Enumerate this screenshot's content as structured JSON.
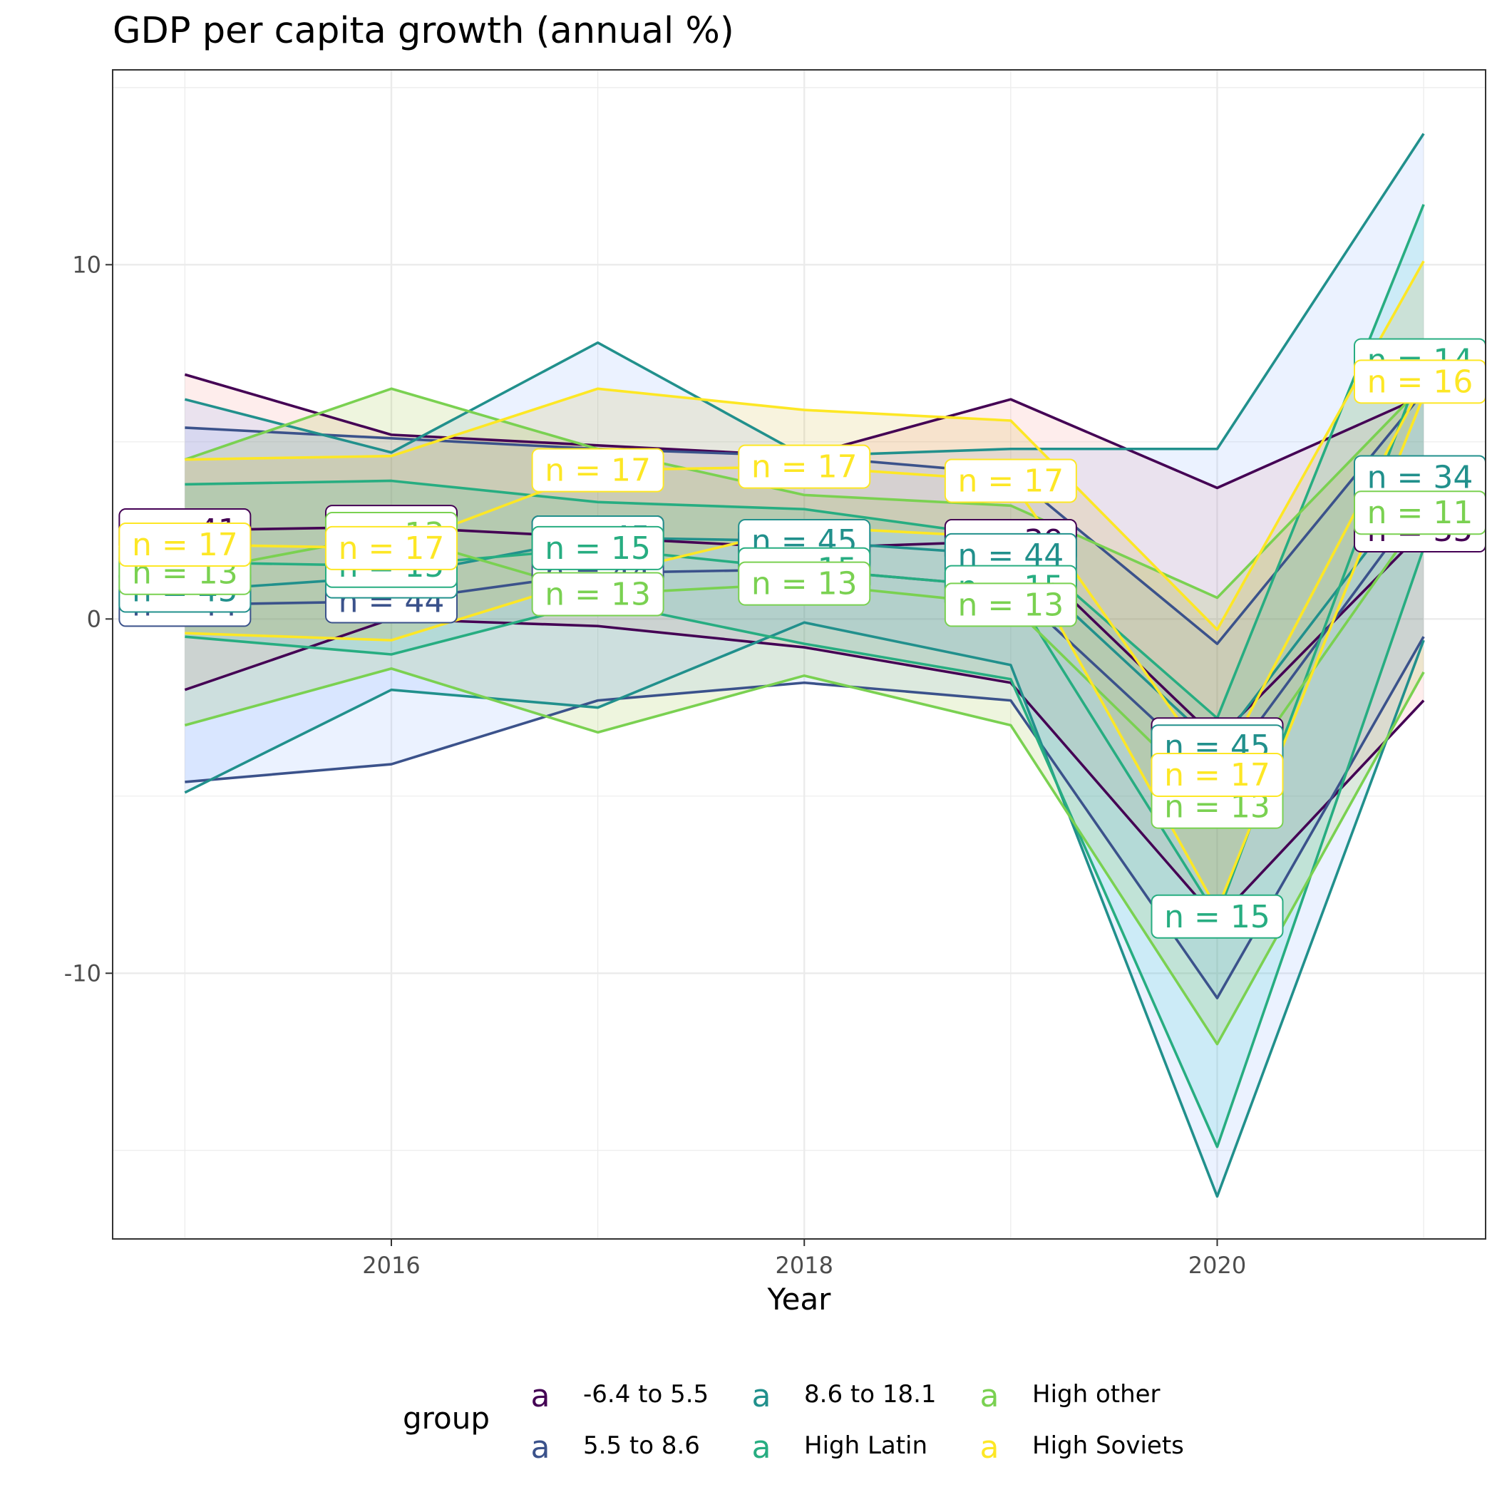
{
  "chart_data": {
    "type": "line",
    "title": "GDP per capita growth (annual %)",
    "xlabel": "Year",
    "ylabel": "",
    "xlim": [
      2014.65,
      2021.3
    ],
    "ylim": [
      -17.5,
      15.5
    ],
    "x_ticks": [
      2016,
      2018,
      2020
    ],
    "y_ticks": [
      10,
      0,
      -10
    ],
    "y_tick_labels": [
      "10",
      "0",
      "-10"
    ],
    "grid": true,
    "bands_shaded": true,
    "legend": {
      "title": "group",
      "placement": "bottom",
      "key_glyph": "a",
      "entries": [
        "-6.4 to 5.5",
        "5.5 to 8.6",
        "8.6 to 18.1",
        "High Latin",
        "High other",
        "High Soviets"
      ]
    },
    "x": [
      2015,
      2016,
      2017,
      2018,
      2019,
      2020,
      2021
    ],
    "series": [
      {
        "name": "-6.4 to 5.5",
        "color": "#440154",
        "fill": "#f8766d",
        "upper": [
          6.9,
          5.2,
          4.9,
          4.6,
          6.2,
          3.7,
          6.3
        ],
        "median": [
          2.5,
          2.6,
          2.3,
          2.0,
          2.2,
          -3.4,
          2.5
        ],
        "lower": [
          -2.0,
          0.0,
          -0.2,
          -0.8,
          -1.8,
          -8.5,
          -2.3
        ],
        "n": [
          41,
          44,
          45,
          45,
          39,
          38,
          35
        ],
        "n_labels": [
          "n = 41",
          "n = 44",
          "n = 45",
          "n = 45",
          "n = 39",
          "n = 38",
          "n = 35"
        ]
      },
      {
        "name": "5.5 to 8.6",
        "color": "#3b528b",
        "fill": "#619cff",
        "upper": [
          5.4,
          5.1,
          4.8,
          4.6,
          4.1,
          -0.7,
          6.4
        ],
        "median": [
          0.4,
          0.5,
          1.3,
          1.4,
          0.9,
          -4.5,
          3.4
        ],
        "lower": [
          -4.6,
          -4.1,
          -2.3,
          -1.8,
          -2.3,
          -10.7,
          -0.5
        ],
        "n": [
          44,
          44,
          44,
          44,
          44,
          44,
          34
        ],
        "n_labels": [
          "n = 44",
          "n = 44",
          "n = 44",
          "n = 44",
          "n = 44",
          "n = 44",
          "n = 34"
        ]
      },
      {
        "name": "8.6 to 18.1",
        "color": "#21908c",
        "fill": "#619cff",
        "upper": [
          6.2,
          4.7,
          7.8,
          4.6,
          4.8,
          4.8,
          13.7
        ],
        "median": [
          0.8,
          1.2,
          2.3,
          2.2,
          1.8,
          -3.6,
          4.0
        ],
        "lower": [
          -4.9,
          -2.0,
          -2.5,
          -0.1,
          -1.3,
          -16.3,
          -0.6
        ],
        "n": [
          45,
          45,
          45,
          45,
          44,
          45,
          34
        ],
        "n_labels": [
          "n = 45",
          "n = 45",
          "n = 45",
          "n = 45",
          "n = 44",
          "n = 45",
          "n = 34"
        ]
      },
      {
        "name": "High Latin",
        "color": "#27ad81",
        "fill": "#00bfc4",
        "upper": [
          3.8,
          3.9,
          3.3,
          3.1,
          2.3,
          -2.8,
          11.7
        ],
        "median": [
          1.6,
          1.5,
          2.0,
          1.4,
          0.9,
          -8.4,
          7.3
        ],
        "lower": [
          -0.5,
          -1.0,
          0.5,
          -0.7,
          -1.7,
          -14.9,
          2.0
        ],
        "n": [
          15,
          15,
          15,
          15,
          15,
          15,
          14
        ],
        "n_labels": [
          "n = 15",
          "n = 15",
          "n = 15",
          "n = 15",
          "n = 15",
          "n = 15",
          "n = 14"
        ]
      },
      {
        "name": "High other",
        "color": "#7ad151",
        "fill": "#7cae00",
        "upper": [
          4.5,
          6.5,
          4.8,
          3.5,
          3.2,
          0.6,
          6.6
        ],
        "median": [
          1.3,
          2.4,
          0.7,
          1.0,
          0.4,
          -5.3,
          3.0
        ],
        "lower": [
          -3.0,
          -1.4,
          -3.2,
          -1.6,
          -3.0,
          -12.0,
          -1.5
        ],
        "n": [
          13,
          13,
          13,
          13,
          13,
          13,
          11
        ],
        "n_labels": [
          "n = 13",
          "n = 13",
          "n = 13",
          "n = 13",
          "n = 13",
          "n = 13",
          "n = 11"
        ]
      },
      {
        "name": "High Soviets",
        "color": "#fde725",
        "fill": "#c7a400",
        "upper": [
          4.5,
          4.6,
          6.5,
          5.9,
          5.6,
          -0.3,
          10.1
        ],
        "median": [
          2.1,
          2.0,
          4.2,
          4.3,
          3.9,
          -4.4,
          6.7
        ],
        "lower": [
          -0.4,
          -0.6,
          1.2,
          2.6,
          2.3,
          -8.2,
          6.3
        ],
        "n": [
          17,
          17,
          17,
          17,
          17,
          17,
          16
        ],
        "n_labels": [
          "n = 17",
          "n = 17",
          "n = 17",
          "n = 17",
          "n = 17",
          "n = 17",
          "n = 16"
        ]
      }
    ]
  }
}
